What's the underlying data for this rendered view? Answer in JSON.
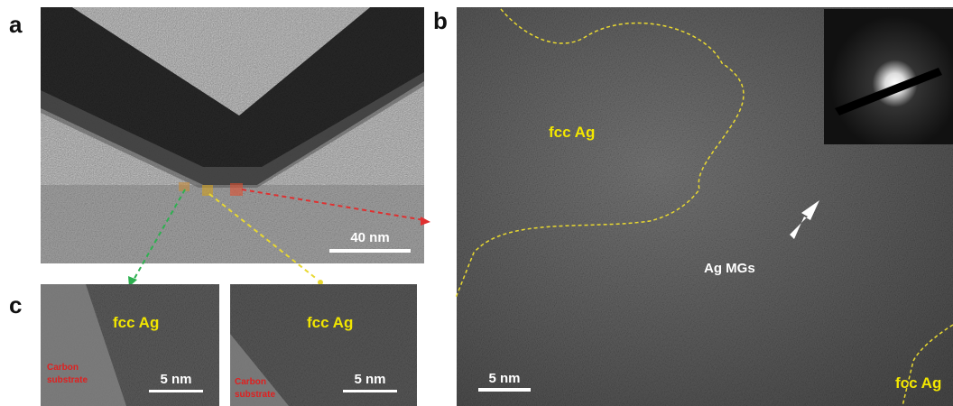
{
  "panels": [
    {
      "label": "a",
      "scale_bar": "40 nm"
    },
    {
      "label": "b",
      "phase_labels": [
        "fcc Ag",
        "Ag MGs",
        "fcc Ag"
      ],
      "scale_bar": "5 nm"
    },
    {
      "label": "c",
      "images": [
        {
          "phase": "fcc Ag",
          "substrate": [
            "Carbon",
            "substrate"
          ],
          "scale_bar": "5 nm"
        },
        {
          "phase": "fcc Ag",
          "substrate": [
            "Carbon",
            "substrate"
          ],
          "scale_bar": "5 nm"
        }
      ]
    }
  ]
}
